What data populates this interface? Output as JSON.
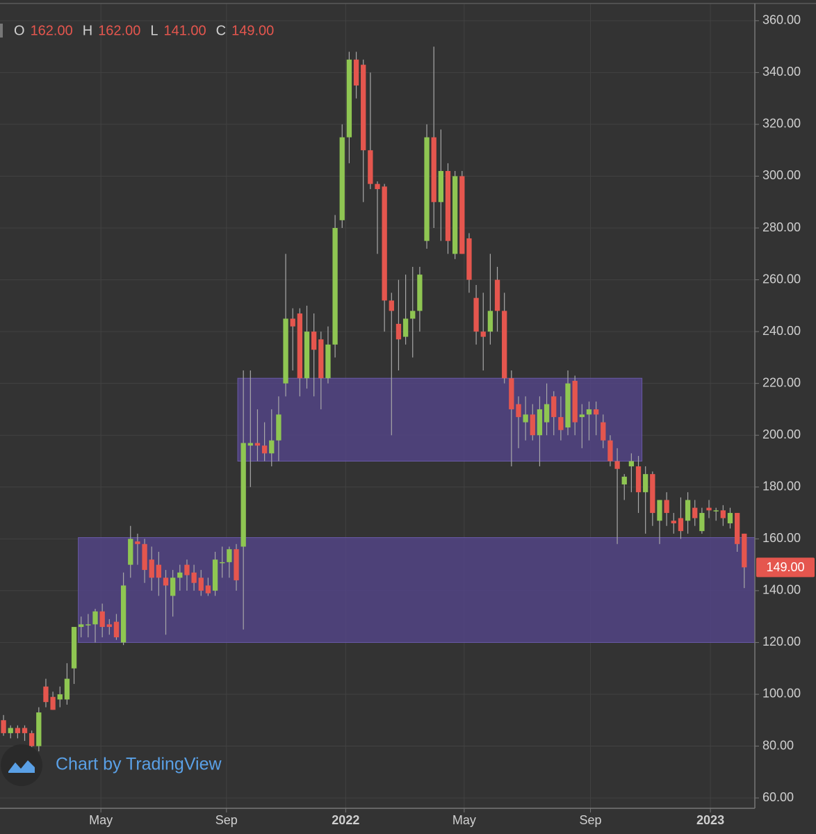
{
  "chart_data": {
    "type": "candlestick",
    "ohlc_header": [
      {
        "label": "O",
        "value": "162.00"
      },
      {
        "label": "H",
        "value": "162.00"
      },
      {
        "label": "L",
        "value": "141.00"
      },
      {
        "label": "C",
        "value": "149.00"
      }
    ],
    "watermark": "Chart by TradingView",
    "last_price": {
      "value": 149,
      "label": "149.00"
    },
    "up_color": "#8fc652",
    "down_color": "#e5564e",
    "wick_color": "#a8a8a8",
    "zone_color": "#54458a",
    "grid": true,
    "xlim": [
      -0.5,
      106.5
    ],
    "ylim": [
      56,
      368
    ],
    "xticks": [
      {
        "value": 13.8,
        "label": "May"
      },
      {
        "value": 31.6,
        "label": "Sep"
      },
      {
        "value": 48.5,
        "label": "2022"
      },
      {
        "value": 65.3,
        "label": "May"
      },
      {
        "value": 83.2,
        "label": "Sep"
      },
      {
        "value": 100.2,
        "label": "2023"
      }
    ],
    "yticks": [
      {
        "value": 60,
        "label": "60.00"
      },
      {
        "value": 80,
        "label": "80.00"
      },
      {
        "value": 100,
        "label": "100.00"
      },
      {
        "value": 120,
        "label": "120.00"
      },
      {
        "value": 140,
        "label": "140.00"
      },
      {
        "value": 160,
        "label": "160.00"
      },
      {
        "value": 180,
        "label": "180.00"
      },
      {
        "value": 200,
        "label": "200.00"
      },
      {
        "value": 220,
        "label": "220.00"
      },
      {
        "value": 240,
        "label": "240.00"
      },
      {
        "value": 260,
        "label": "260.00"
      },
      {
        "value": 280,
        "label": "280.00"
      },
      {
        "value": 300,
        "label": "300.00"
      },
      {
        "value": 320,
        "label": "320.00"
      },
      {
        "value": 340,
        "label": "340.00"
      },
      {
        "value": 360,
        "label": "360.00"
      }
    ],
    "zones": [
      {
        "x": [
          10.6,
          106.5
        ],
        "y": [
          120,
          160.5
        ]
      },
      {
        "x": [
          33.2,
          90.5
        ],
        "y": [
          190,
          222
        ]
      }
    ],
    "x": [
      0,
      1,
      2,
      3,
      4,
      5,
      6,
      7,
      8,
      9,
      10,
      11,
      12,
      13,
      14,
      15,
      16,
      17,
      18,
      19,
      20,
      21,
      22,
      23,
      24,
      25,
      26,
      27,
      28,
      29,
      30,
      31,
      32,
      33,
      34,
      35,
      36,
      37,
      38,
      39,
      40,
      41,
      42,
      43,
      44,
      45,
      46,
      47,
      48,
      49,
      50,
      51,
      52,
      53,
      54,
      55,
      56,
      57,
      58,
      59,
      60,
      61,
      62,
      63,
      64,
      65,
      66,
      67,
      68,
      69,
      70,
      71,
      72,
      73,
      74,
      75,
      76,
      77,
      78,
      79,
      80,
      81,
      82,
      83,
      84,
      85,
      86,
      87,
      88,
      89,
      90,
      91,
      92,
      93,
      94,
      95,
      96,
      97,
      98,
      99,
      100,
      101,
      102,
      103,
      104,
      105
    ],
    "open": [
      90,
      85,
      87,
      87,
      85,
      80,
      103,
      99,
      98,
      98,
      110,
      126,
      127,
      127,
      132,
      127,
      128,
      120,
      150,
      159,
      158,
      152,
      150,
      145,
      138,
      145,
      150,
      147,
      145,
      142,
      140,
      151,
      151,
      156,
      157,
      196,
      197,
      196,
      193,
      198,
      220,
      245,
      247,
      222,
      240,
      237,
      222,
      235,
      283,
      315,
      345,
      343,
      310,
      297,
      296,
      252,
      243,
      238,
      245,
      248,
      275,
      315,
      290,
      302,
      270,
      300,
      276,
      253,
      240,
      240,
      260,
      248,
      222,
      212,
      205,
      208,
      200,
      205,
      215,
      207,
      203,
      221,
      207,
      208,
      210,
      205,
      198,
      190,
      181,
      188,
      188,
      178,
      185,
      167,
      175,
      167,
      168,
      167,
      172,
      163,
      172,
      171,
      171,
      166,
      170,
      162
    ],
    "high": [
      92,
      88,
      88,
      88,
      86,
      95,
      106,
      101,
      103,
      112,
      126,
      130,
      131,
      133,
      135,
      129,
      131,
      147,
      165,
      162,
      160,
      157,
      155,
      148,
      148,
      150,
      152,
      150,
      148,
      145,
      155,
      157,
      157,
      158,
      225,
      225,
      210,
      205,
      210,
      215,
      270,
      249,
      249,
      250,
      247,
      240,
      242,
      285,
      320,
      348,
      348,
      345,
      340,
      298,
      297,
      255,
      260,
      262,
      265,
      265,
      320,
      350,
      318,
      305,
      302,
      302,
      278,
      258,
      255,
      270,
      265,
      255,
      225,
      215,
      215,
      212,
      215,
      220,
      217,
      215,
      225,
      223,
      212,
      213,
      213,
      208,
      200,
      195,
      185,
      193,
      192,
      188,
      186,
      175,
      178,
      170,
      176,
      178,
      175,
      172,
      175,
      172,
      173,
      172,
      170,
      162
    ],
    "low": [
      84,
      83,
      83,
      82,
      79,
      78,
      95,
      94,
      95,
      96,
      104,
      122,
      122,
      120,
      122,
      123,
      121,
      119,
      145,
      150,
      143,
      140,
      138,
      123,
      130,
      140,
      140,
      140,
      138,
      138,
      138,
      145,
      145,
      140,
      125,
      180,
      190,
      190,
      188,
      190,
      215,
      225,
      215,
      218,
      215,
      210,
      220,
      230,
      280,
      305,
      330,
      290,
      295,
      270,
      240,
      200,
      225,
      235,
      230,
      240,
      272,
      280,
      275,
      270,
      268,
      270,
      255,
      235,
      225,
      235,
      240,
      220,
      188,
      195,
      198,
      198,
      188,
      200,
      200,
      198,
      200,
      200,
      195,
      198,
      200,
      195,
      188,
      158,
      175,
      178,
      170,
      162,
      165,
      158,
      165,
      162,
      160,
      162,
      165,
      162,
      168,
      167,
      165,
      164,
      155,
      141
    ],
    "close": [
      85,
      87,
      85,
      85,
      80,
      93,
      97,
      94,
      100,
      106,
      126,
      127,
      127,
      132,
      126,
      126,
      122,
      142,
      160,
      158,
      148,
      145,
      145,
      142,
      145,
      147,
      146,
      143,
      140,
      139,
      152,
      151,
      156,
      144,
      197,
      197,
      196,
      193,
      198,
      208,
      245,
      242,
      222,
      240,
      233,
      222,
      235,
      280,
      315,
      345,
      335,
      310,
      297,
      295,
      252,
      248,
      237,
      245,
      248,
      262,
      315,
      290,
      302,
      275,
      300,
      270,
      260,
      240,
      238,
      248,
      248,
      222,
      210,
      207,
      208,
      200,
      210,
      212,
      207,
      202,
      220,
      205,
      208,
      210,
      208,
      198,
      190,
      187,
      184,
      190,
      178,
      185,
      170,
      175,
      170,
      166,
      163,
      175,
      168,
      170,
      171,
      171,
      168,
      170,
      158,
      149
    ]
  }
}
